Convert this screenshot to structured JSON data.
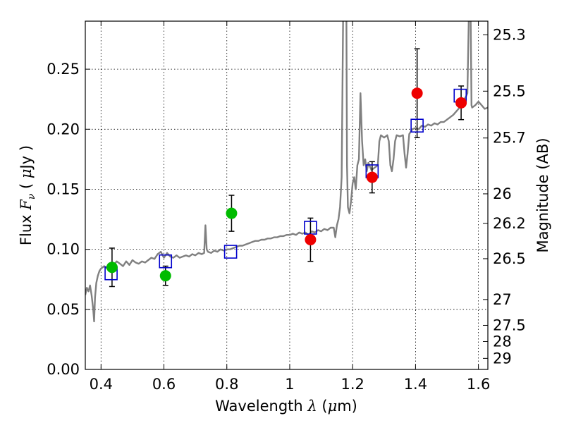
{
  "chart_data": {
    "type": "scatter",
    "xlabel": "Wavelength  λ (μm)",
    "ylabel": "Flux  F_ν  ( μJy )",
    "y2label": "Magnitude (AB)",
    "xlim": [
      0.35,
      1.63
    ],
    "ylim": [
      0.0,
      0.29
    ],
    "grid": true,
    "x_ticks": [
      0.4,
      0.6,
      0.8,
      1.0,
      1.2,
      1.4,
      1.6
    ],
    "x_tick_labels": [
      "0.4",
      "0.6",
      "0.8",
      "1",
      "1.2",
      "1.4",
      "1.6"
    ],
    "y_ticks": [
      0.0,
      0.05,
      0.1,
      0.15,
      0.2,
      0.25
    ],
    "y_tick_labels": [
      "0.00",
      "0.05",
      "0.10",
      "0.15",
      "0.20",
      "0.25"
    ],
    "y2_ticks": [
      {
        "label": "25.3",
        "flux": 0.2786
      },
      {
        "label": "25.5",
        "flux": 0.2317
      },
      {
        "label": "25.7",
        "flux": 0.1927
      },
      {
        "label": "26",
        "flux": 0.1462
      },
      {
        "label": "26.2",
        "flux": 0.1216
      },
      {
        "label": "26.5",
        "flux": 0.0922
      },
      {
        "label": "27",
        "flux": 0.0582
      },
      {
        "label": "27.5",
        "flux": 0.0367
      },
      {
        "label": "28",
        "flux": 0.0232
      },
      {
        "label": "29",
        "flux": 0.0092
      }
    ],
    "model_spectrum": {
      "color": "#808080",
      "points": [
        [
          0.35,
          0.062
        ],
        [
          0.355,
          0.068
        ],
        [
          0.36,
          0.065
        ],
        [
          0.365,
          0.07
        ],
        [
          0.37,
          0.062
        ],
        [
          0.375,
          0.05
        ],
        [
          0.378,
          0.04
        ],
        [
          0.381,
          0.06
        ],
        [
          0.385,
          0.072
        ],
        [
          0.39,
          0.078
        ],
        [
          0.395,
          0.082
        ],
        [
          0.4,
          0.084
        ],
        [
          0.41,
          0.086
        ],
        [
          0.42,
          0.084
        ],
        [
          0.43,
          0.088
        ],
        [
          0.44,
          0.087
        ],
        [
          0.45,
          0.09
        ],
        [
          0.46,
          0.088
        ],
        [
          0.47,
          0.086
        ],
        [
          0.48,
          0.09
        ],
        [
          0.49,
          0.087
        ],
        [
          0.5,
          0.091
        ],
        [
          0.51,
          0.089
        ],
        [
          0.52,
          0.088
        ],
        [
          0.53,
          0.09
        ],
        [
          0.54,
          0.089
        ],
        [
          0.55,
          0.091
        ],
        [
          0.56,
          0.093
        ],
        [
          0.57,
          0.092
        ],
        [
          0.58,
          0.096
        ],
        [
          0.59,
          0.098
        ],
        [
          0.6,
          0.093
        ],
        [
          0.61,
          0.097
        ],
        [
          0.62,
          0.094
        ],
        [
          0.63,
          0.093
        ],
        [
          0.64,
          0.095
        ],
        [
          0.65,
          0.093
        ],
        [
          0.66,
          0.094
        ],
        [
          0.67,
          0.095
        ],
        [
          0.68,
          0.094
        ],
        [
          0.69,
          0.096
        ],
        [
          0.7,
          0.095
        ],
        [
          0.71,
          0.097
        ],
        [
          0.72,
          0.096
        ],
        [
          0.728,
          0.097
        ],
        [
          0.732,
          0.12
        ],
        [
          0.736,
          0.1
        ],
        [
          0.74,
          0.098
        ],
        [
          0.75,
          0.097
        ],
        [
          0.76,
          0.099
        ],
        [
          0.77,
          0.098
        ],
        [
          0.78,
          0.1
        ],
        [
          0.79,
          0.099
        ],
        [
          0.8,
          0.1
        ],
        [
          0.81,
          0.1
        ],
        [
          0.82,
          0.101
        ],
        [
          0.83,
          0.102
        ],
        [
          0.84,
          0.103
        ],
        [
          0.85,
          0.103
        ],
        [
          0.86,
          0.104
        ],
        [
          0.87,
          0.105
        ],
        [
          0.88,
          0.106
        ],
        [
          0.89,
          0.107
        ],
        [
          0.9,
          0.107
        ],
        [
          0.91,
          0.108
        ],
        [
          0.92,
          0.108
        ],
        [
          0.93,
          0.109
        ],
        [
          0.94,
          0.109
        ],
        [
          0.95,
          0.11
        ],
        [
          0.96,
          0.11
        ],
        [
          0.97,
          0.111
        ],
        [
          0.98,
          0.111
        ],
        [
          0.99,
          0.112
        ],
        [
          1.0,
          0.112
        ],
        [
          1.01,
          0.113
        ],
        [
          1.02,
          0.112
        ],
        [
          1.03,
          0.114
        ],
        [
          1.04,
          0.113
        ],
        [
          1.05,
          0.114
        ],
        [
          1.06,
          0.112
        ],
        [
          1.07,
          0.115
        ],
        [
          1.08,
          0.114
        ],
        [
          1.09,
          0.116
        ],
        [
          1.1,
          0.115
        ],
        [
          1.11,
          0.117
        ],
        [
          1.12,
          0.116
        ],
        [
          1.13,
          0.118
        ],
        [
          1.14,
          0.118
        ],
        [
          1.145,
          0.11
        ],
        [
          1.15,
          0.12
        ],
        [
          1.155,
          0.125
        ],
        [
          1.16,
          0.135
        ],
        [
          1.165,
          0.16
        ],
        [
          1.17,
          0.3
        ],
        [
          1.175,
          0.3
        ],
        [
          1.18,
          0.3
        ],
        [
          1.182,
          0.17
        ],
        [
          1.185,
          0.135
        ],
        [
          1.19,
          0.13
        ],
        [
          1.195,
          0.14
        ],
        [
          1.2,
          0.155
        ],
        [
          1.205,
          0.16
        ],
        [
          1.21,
          0.15
        ],
        [
          1.215,
          0.17
        ],
        [
          1.22,
          0.175
        ],
        [
          1.225,
          0.23
        ],
        [
          1.23,
          0.19
        ],
        [
          1.235,
          0.17
        ],
        [
          1.24,
          0.175
        ],
        [
          1.245,
          0.165
        ],
        [
          1.25,
          0.172
        ],
        [
          1.26,
          0.166
        ],
        [
          1.27,
          0.168
        ],
        [
          1.28,
          0.17
        ],
        [
          1.285,
          0.19
        ],
        [
          1.29,
          0.195
        ],
        [
          1.3,
          0.193
        ],
        [
          1.31,
          0.195
        ],
        [
          1.315,
          0.19
        ],
        [
          1.32,
          0.17
        ],
        [
          1.325,
          0.165
        ],
        [
          1.33,
          0.175
        ],
        [
          1.335,
          0.19
        ],
        [
          1.34,
          0.195
        ],
        [
          1.35,
          0.194
        ],
        [
          1.36,
          0.195
        ],
        [
          1.365,
          0.18
        ],
        [
          1.37,
          0.168
        ],
        [
          1.375,
          0.18
        ],
        [
          1.38,
          0.196
        ],
        [
          1.39,
          0.2
        ],
        [
          1.4,
          0.201
        ],
        [
          1.41,
          0.2
        ],
        [
          1.42,
          0.203
        ],
        [
          1.43,
          0.202
        ],
        [
          1.44,
          0.204
        ],
        [
          1.45,
          0.203
        ],
        [
          1.46,
          0.205
        ],
        [
          1.47,
          0.204
        ],
        [
          1.48,
          0.206
        ],
        [
          1.49,
          0.206
        ],
        [
          1.5,
          0.208
        ],
        [
          1.51,
          0.21
        ],
        [
          1.52,
          0.212
        ],
        [
          1.53,
          0.215
        ],
        [
          1.54,
          0.218
        ],
        [
          1.55,
          0.222
        ],
        [
          1.555,
          0.225
        ],
        [
          1.56,
          0.227
        ],
        [
          1.565,
          0.23
        ],
        [
          1.57,
          0.3
        ],
        [
          1.575,
          0.3
        ],
        [
          1.578,
          0.22
        ],
        [
          1.58,
          0.218
        ],
        [
          1.59,
          0.22
        ],
        [
          1.6,
          0.223
        ],
        [
          1.61,
          0.22
        ],
        [
          1.62,
          0.217
        ],
        [
          1.63,
          0.218
        ]
      ]
    },
    "series": [
      {
        "marker": "open-square",
        "color": "#0000cc",
        "points": [
          {
            "x": 0.432,
            "y": 0.08
          },
          {
            "x": 0.605,
            "y": 0.09
          },
          {
            "x": 0.812,
            "y": 0.098
          },
          {
            "x": 1.066,
            "y": 0.118
          },
          {
            "x": 1.262,
            "y": 0.165
          },
          {
            "x": 1.405,
            "y": 0.203
          },
          {
            "x": 1.542,
            "y": 0.228
          }
        ]
      },
      {
        "marker": "filled-circle",
        "color": "#00bb00",
        "points": [
          {
            "x": 0.435,
            "y": 0.085,
            "err": 0.016
          },
          {
            "x": 0.605,
            "y": 0.078,
            "err": 0.008
          },
          {
            "x": 0.815,
            "y": 0.13,
            "err": 0.015
          }
        ]
      },
      {
        "marker": "filled-circle",
        "color": "#ee0000",
        "points": [
          {
            "x": 1.066,
            "y": 0.108,
            "err": 0.018
          },
          {
            "x": 1.262,
            "y": 0.16,
            "err": 0.013
          },
          {
            "x": 1.405,
            "y": 0.23,
            "err": 0.037
          },
          {
            "x": 1.545,
            "y": 0.222,
            "err": 0.014
          }
        ]
      }
    ]
  }
}
